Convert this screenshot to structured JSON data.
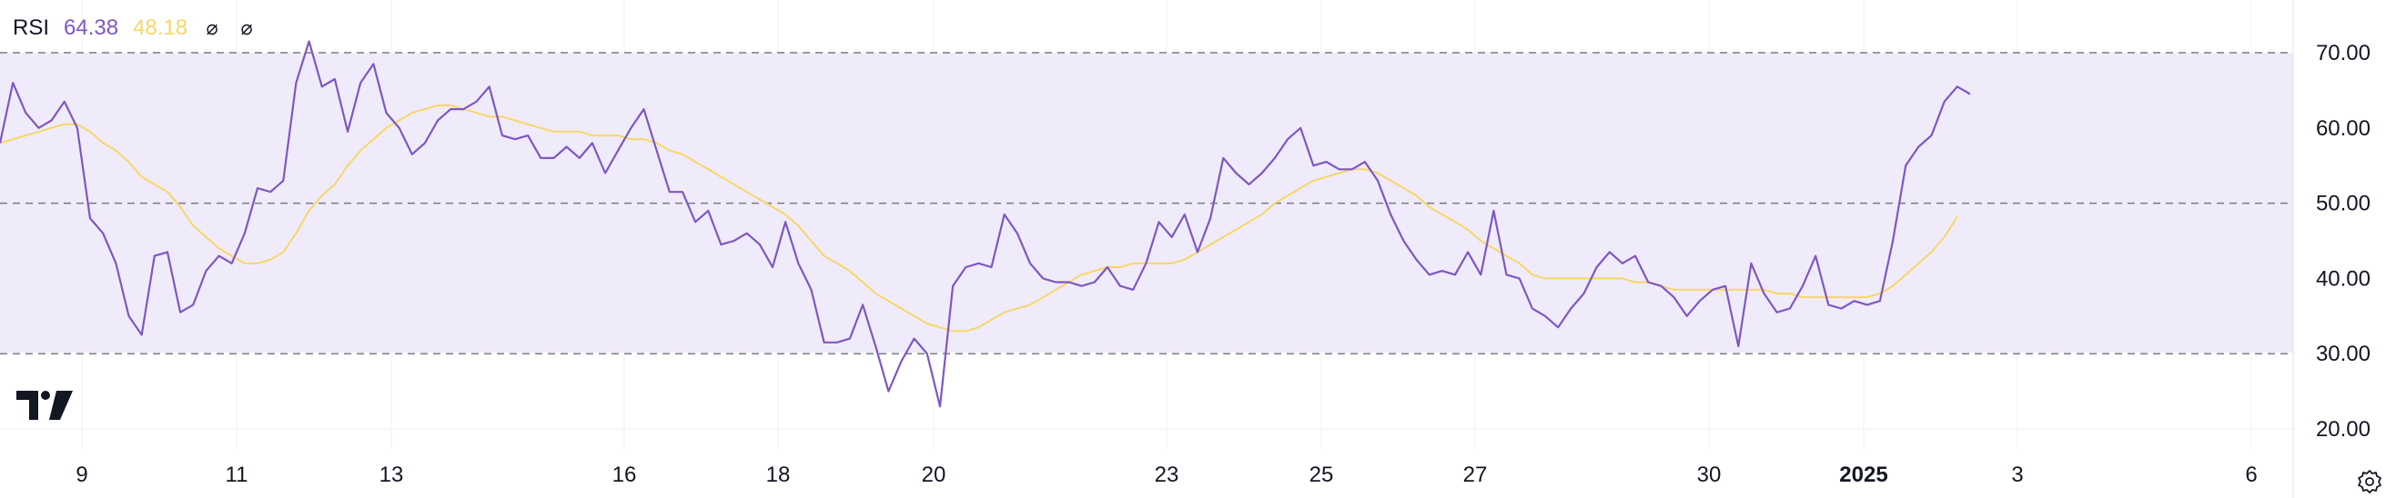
{
  "legend": {
    "title": "RSI",
    "rsi_value": "64.38",
    "ma_value": "48.18",
    "icons": [
      "circle-slash-icon",
      "circle-slash-icon"
    ]
  },
  "colors": {
    "rsi_line": "#7e57c2",
    "ma_line": "#f7d667",
    "band_fill": "#f0ebfa",
    "band_lines": "#787b86",
    "grid": "#eef0f3",
    "text": "#131722"
  },
  "chart_data": {
    "type": "line",
    "x": {
      "tick_labels": [
        "9",
        "11",
        "13",
        "16",
        "18",
        "20",
        "23",
        "25",
        "27",
        "30",
        "2025",
        "3",
        "6"
      ],
      "bold_ticks": [
        "2025"
      ]
    },
    "y": {
      "range": [
        17,
        73
      ],
      "tick_labels": [
        "70.00",
        "60.00",
        "50.00",
        "40.00",
        "30.00",
        "20.00"
      ],
      "tick_values": [
        70,
        60,
        50,
        40,
        30,
        20
      ]
    },
    "bands": {
      "upper": 70,
      "middle": 50,
      "lower": 30
    },
    "grid": true,
    "series": [
      {
        "key": "rsi",
        "values": [
          58,
          66,
          62,
          60,
          61,
          63.5,
          60,
          48,
          46,
          42,
          35,
          32.5,
          43,
          43.5,
          35.5,
          36.5,
          41,
          43,
          42,
          46,
          52,
          51.5,
          53,
          66,
          71.5,
          65.5,
          66.5,
          59.5,
          66,
          68.5,
          62,
          60,
          56.5,
          58,
          61,
          62.5,
          62.5,
          63.5,
          65.5,
          59,
          58.5,
          59,
          56,
          56,
          57.5,
          56,
          58,
          54,
          57,
          60,
          62.5,
          57,
          51.5,
          51.5,
          47.5,
          49,
          44.5,
          45,
          46,
          44.5,
          41.5,
          47.5,
          42,
          38.5,
          31.5,
          31.5,
          32,
          36.5,
          31,
          25,
          29,
          32,
          30,
          23,
          39,
          41.5,
          42,
          41.5,
          48.5,
          46,
          42,
          40,
          39.5,
          39.5,
          39,
          39.5,
          41.5,
          39,
          38.5,
          42,
          47.5,
          45.5,
          48.5,
          43.5,
          48,
          56,
          54,
          52.5,
          54,
          56,
          58.5,
          60,
          55,
          55.5,
          54.5,
          54.5,
          55.5,
          53,
          48.5,
          45,
          42.5,
          40.5,
          41,
          40.5,
          43.5,
          40.5,
          49,
          40.5,
          40,
          36,
          35,
          33.5,
          36,
          38,
          41.5,
          43.5,
          42,
          43,
          39.5,
          39,
          37.5,
          35,
          37,
          38.5,
          39,
          31,
          42,
          38,
          35.5,
          36,
          39,
          43,
          36.5,
          36,
          37,
          36.5,
          37,
          45,
          55,
          57.5,
          59,
          63.5,
          65.5,
          64.5
        ],
        "value_label": "64.38"
      },
      {
        "key": "ma",
        "values": [
          58,
          58.5,
          59,
          59.5,
          60,
          60.5,
          60.5,
          59.5,
          58,
          57,
          55.5,
          53.5,
          52.5,
          51.5,
          49.5,
          47,
          45.5,
          44,
          43,
          42,
          42,
          42.5,
          43.5,
          46,
          49,
          51,
          52.5,
          55,
          57,
          58.5,
          60,
          61,
          62,
          62.5,
          63,
          63,
          62.5,
          62,
          61.5,
          61.5,
          61,
          60.5,
          60,
          59.5,
          59.5,
          59.5,
          59,
          59,
          59,
          58.5,
          58.5,
          58,
          57,
          56.5,
          55.5,
          54.5,
          53.5,
          52.5,
          51.5,
          50.5,
          49.5,
          48.5,
          47,
          45,
          43,
          42,
          41,
          39.5,
          38,
          37,
          36,
          35,
          34,
          33.5,
          33,
          33,
          33.5,
          34.5,
          35.5,
          36,
          36.5,
          37.5,
          38.5,
          39.5,
          40.5,
          41,
          41.5,
          41.5,
          42,
          42,
          42,
          42,
          42.5,
          43.5,
          44.5,
          45.5,
          46.5,
          47.5,
          48.5,
          50,
          51,
          52,
          53,
          53.5,
          54,
          54.5,
          54.5,
          54,
          53,
          52,
          51,
          49.5,
          48.5,
          47.5,
          46.5,
          45,
          44,
          43,
          42,
          40.5,
          40,
          40,
          40,
          40,
          40,
          40,
          40,
          39.5,
          39.5,
          39,
          38.5,
          38.5,
          38.5,
          38.5,
          38.5,
          38.5,
          38.5,
          38.5,
          38,
          38,
          37.5,
          37.5,
          37.5,
          37.5,
          37.5,
          37.5,
          38,
          39,
          40.5,
          42,
          43.5,
          45.5,
          48.2
        ],
        "value_label": "48.18"
      }
    ]
  }
}
